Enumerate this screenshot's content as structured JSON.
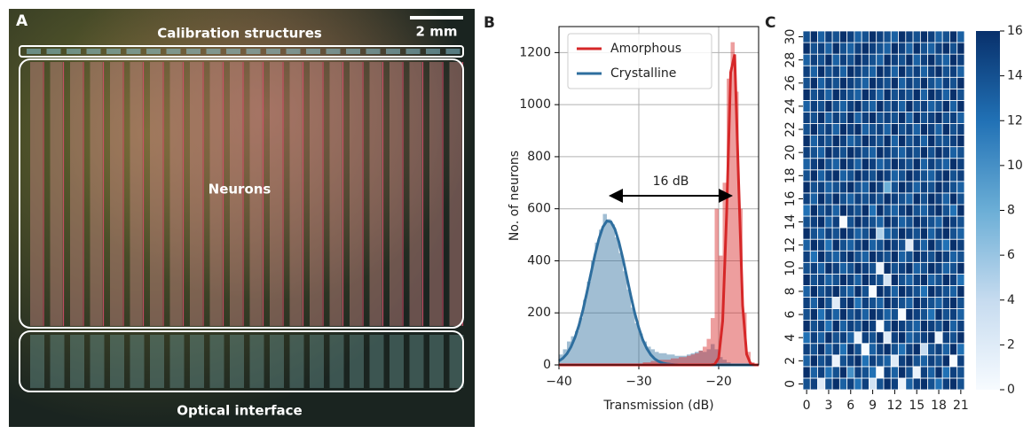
{
  "photo": {
    "panel": "A",
    "top_label": "Calibration structures",
    "scale_bar": "2 mm",
    "center_label": "Neurons",
    "bottom_label": "Optical interface"
  },
  "chart_data": [
    {
      "type": "histogram",
      "panel": "B",
      "xlabel": "Transmission (dB)",
      "ylabel": "No. of neurons",
      "xlim": [
        -40,
        -15
      ],
      "ylim": [
        0,
        1300
      ],
      "xticks": [
        {
          "value": -40,
          "label": "−40"
        },
        {
          "value": -30,
          "label": "−30"
        },
        {
          "value": -20,
          "label": "−20"
        }
      ],
      "yticks": [
        0,
        200,
        400,
        600,
        800,
        1000,
        1200
      ],
      "grid": true,
      "legend": "upper left",
      "bins": [
        -40,
        -39.5,
        -39,
        -38.5,
        -38,
        -37.5,
        -37,
        -36.5,
        -36,
        -35.5,
        -35,
        -34.5,
        -34,
        -33.5,
        -33,
        -32.5,
        -32,
        -31.5,
        -31,
        -30.5,
        -30,
        -29.5,
        -29,
        -28.5,
        -28,
        -27.5,
        -27,
        -26.5,
        -26,
        -25.5,
        -25,
        -24.5,
        -24,
        -23.5,
        -23,
        -22.5,
        -22,
        -21.5,
        -21,
        -20.5,
        -20,
        -19.5,
        -19,
        -18.5,
        -18,
        -17.5,
        -17,
        -16.5,
        -16,
        -15.5,
        -15
      ],
      "series": [
        {
          "name": "Amorphous",
          "color": "#d62728",
          "values": [
            0,
            0,
            0,
            0,
            0,
            0,
            0,
            0,
            0,
            0,
            0,
            0,
            0,
            0,
            0,
            0,
            0,
            0,
            0,
            0,
            5,
            10,
            10,
            15,
            15,
            20,
            20,
            20,
            25,
            25,
            30,
            30,
            35,
            40,
            45,
            55,
            70,
            100,
            180,
            600,
            420,
            700,
            1100,
            1240,
            1050,
            600,
            200,
            50,
            10,
            0
          ],
          "fit": [
            0,
            0,
            0,
            0,
            0,
            0,
            0,
            0,
            0,
            0,
            0,
            0,
            0,
            0,
            0,
            0,
            0,
            0,
            0,
            0,
            0,
            0,
            0,
            0,
            0,
            0,
            0,
            0,
            0,
            0,
            0,
            0,
            0,
            0,
            0,
            0,
            0,
            0,
            0,
            2,
            27,
            169,
            586,
            1124,
            1193,
            700,
            228,
            41,
            4,
            0,
            0
          ]
        },
        {
          "name": "Crystalline",
          "color": "#2e6e9e",
          "values": [
            40,
            60,
            90,
            110,
            130,
            180,
            250,
            320,
            400,
            470,
            520,
            580,
            560,
            540,
            490,
            430,
            360,
            290,
            220,
            160,
            120,
            90,
            70,
            60,
            50,
            45,
            45,
            40,
            40,
            35,
            35,
            35,
            40,
            45,
            50,
            55,
            50,
            60,
            80,
            60,
            30,
            20,
            10,
            5,
            0,
            0,
            0,
            0,
            0,
            0
          ],
          "fit": [
            15,
            26,
            43,
            69,
            105,
            152,
            211,
            279,
            351,
            422,
            484,
            530,
            553,
            550,
            522,
            473,
            409,
            337,
            265,
            198,
            142,
            96,
            63,
            39,
            23,
            13,
            7,
            4,
            2,
            1,
            0,
            0,
            0,
            0,
            0,
            0,
            0,
            0,
            0,
            0,
            0,
            0,
            0,
            0,
            0,
            0,
            0,
            0,
            0,
            0,
            0
          ]
        }
      ],
      "annotation": {
        "text": "16 dB",
        "x_from": -33.6,
        "x_to": -18.4,
        "y": 650
      }
    },
    {
      "type": "heatmap",
      "panel": "C",
      "colormap": "Blues",
      "xlim": [
        -0.5,
        21.5
      ],
      "ylim": [
        -0.5,
        30.5
      ],
      "xticks": [
        0,
        3,
        6,
        9,
        12,
        15,
        18,
        21
      ],
      "yticks": [
        0,
        2,
        4,
        6,
        8,
        10,
        12,
        14,
        16,
        18,
        20,
        22,
        24,
        26,
        28,
        30
      ],
      "clim": [
        0,
        16
      ],
      "cticks": [
        0,
        2,
        4,
        6,
        8,
        10,
        12,
        14,
        16
      ],
      "values": [
        [
          14,
          15,
          2,
          14,
          16,
          13,
          15,
          12,
          15,
          3,
          14,
          16,
          15,
          1,
          13,
          15,
          16,
          14,
          12,
          15,
          16,
          14
        ],
        [
          16,
          13,
          15,
          12,
          14,
          16,
          10,
          15,
          14,
          12,
          0,
          15,
          13,
          16,
          14,
          1,
          15,
          13,
          16,
          12,
          15,
          14
        ],
        [
          13,
          16,
          14,
          15,
          1,
          14,
          15,
          16,
          12,
          15,
          14,
          13,
          2,
          15,
          16,
          14,
          13,
          15,
          14,
          16,
          0,
          15
        ],
        [
          15,
          14,
          16,
          13,
          15,
          12,
          16,
          14,
          0,
          13,
          15,
          16,
          14,
          12,
          15,
          16,
          4,
          14,
          15,
          13,
          16,
          12
        ],
        [
          12,
          15,
          13,
          16,
          14,
          15,
          13,
          1,
          15,
          14,
          16,
          2,
          15,
          16,
          13,
          14,
          15,
          16,
          1,
          15,
          14,
          16
        ],
        [
          16,
          14,
          15,
          12,
          16,
          13,
          15,
          14,
          16,
          15,
          0,
          14,
          16,
          15,
          14,
          13,
          16,
          15,
          14,
          16,
          13,
          15
        ],
        [
          14,
          16,
          12,
          15,
          13,
          16,
          14,
          15,
          13,
          16,
          15,
          13,
          14,
          0,
          16,
          15,
          14,
          12,
          16,
          14,
          15,
          13
        ],
        [
          15,
          13,
          16,
          14,
          2,
          15,
          16,
          12,
          15,
          14,
          13,
          16,
          15,
          14,
          13,
          16,
          15,
          14,
          13,
          15,
          16,
          14
        ],
        [
          13,
          16,
          14,
          15,
          16,
          14,
          13,
          16,
          14,
          0,
          16,
          15,
          13,
          16,
          15,
          14,
          12,
          16,
          15,
          14,
          13,
          16
        ],
        [
          16,
          14,
          15,
          13,
          14,
          16,
          15,
          13,
          16,
          15,
          14,
          3,
          16,
          14,
          13,
          15,
          16,
          13,
          14,
          16,
          15,
          12
        ],
        [
          14,
          15,
          13,
          16,
          15,
          13,
          14,
          16,
          15,
          14,
          1,
          16,
          14,
          15,
          16,
          13,
          14,
          16,
          15,
          13,
          14,
          16
        ],
        [
          15,
          12,
          16,
          14,
          13,
          15,
          16,
          14,
          13,
          16,
          15,
          14,
          16,
          13,
          14,
          16,
          15,
          14,
          16,
          15,
          13,
          14
        ],
        [
          13,
          16,
          15,
          12,
          16,
          14,
          13,
          15,
          16,
          13,
          14,
          16,
          15,
          14,
          2,
          15,
          13,
          16,
          14,
          12,
          16,
          15
        ],
        [
          16,
          14,
          13,
          15,
          14,
          16,
          15,
          13,
          14,
          16,
          5,
          13,
          14,
          16,
          15,
          14,
          16,
          13,
          15,
          16,
          14,
          13
        ],
        [
          14,
          15,
          16,
          13,
          15,
          0,
          14,
          16,
          15,
          14,
          13,
          16,
          15,
          13,
          14,
          16,
          15,
          14,
          13,
          16,
          15,
          14
        ],
        [
          12,
          16,
          14,
          15,
          13,
          16,
          15,
          14,
          16,
          12,
          16,
          14,
          13,
          15,
          16,
          14,
          13,
          15,
          16,
          14,
          12,
          16
        ],
        [
          15,
          13,
          16,
          14,
          16,
          14,
          13,
          15,
          14,
          15,
          14,
          16,
          15,
          14,
          13,
          16,
          14,
          16,
          15,
          13,
          16,
          14
        ],
        [
          16,
          14,
          15,
          13,
          14,
          15,
          16,
          14,
          13,
          16,
          15,
          8,
          14,
          16,
          15,
          13,
          15,
          14,
          16,
          15,
          14,
          13
        ],
        [
          14,
          16,
          13,
          15,
          16,
          13,
          14,
          16,
          15,
          14,
          16,
          15,
          13,
          14,
          16,
          15,
          14,
          13,
          15,
          16,
          14,
          15
        ],
        [
          13,
          15,
          16,
          14,
          13,
          16,
          15,
          13,
          16,
          15,
          13,
          14,
          16,
          15,
          14,
          16,
          13,
          15,
          14,
          13,
          16,
          15
        ],
        [
          15,
          14,
          13,
          16,
          15,
          14,
          16,
          15,
          14,
          13,
          16,
          15,
          14,
          13,
          15,
          14,
          16,
          14,
          16,
          15,
          13,
          14
        ],
        [
          16,
          13,
          15,
          14,
          16,
          15,
          13,
          14,
          16,
          15,
          14,
          16,
          13,
          16,
          14,
          15,
          13,
          16,
          14,
          14,
          15,
          16
        ],
        [
          14,
          16,
          14,
          15,
          13,
          16,
          15,
          16,
          13,
          14,
          15,
          13,
          16,
          14,
          15,
          13,
          16,
          15,
          13,
          16,
          14,
          15
        ],
        [
          15,
          14,
          16,
          13,
          15,
          14,
          16,
          13,
          15,
          16,
          14,
          15,
          14,
          16,
          13,
          16,
          14,
          15,
          16,
          14,
          15,
          13
        ],
        [
          13,
          15,
          14,
          16,
          14,
          13,
          15,
          16,
          14,
          13,
          16,
          14,
          15,
          13,
          16,
          14,
          15,
          13,
          14,
          16,
          13,
          16
        ],
        [
          16,
          14,
          15,
          13,
          16,
          15,
          14,
          13,
          16,
          15,
          13,
          16,
          14,
          15,
          14,
          16,
          13,
          16,
          15,
          13,
          16,
          14
        ],
        [
          14,
          16,
          13,
          15,
          14,
          16,
          15,
          14,
          13,
          16,
          15,
          14,
          16,
          13,
          15,
          14,
          16,
          14,
          13,
          15,
          14,
          16
        ],
        [
          15,
          13,
          16,
          14,
          15,
          13,
          16,
          15,
          14,
          13,
          16,
          15,
          13,
          16,
          14,
          15,
          13,
          15,
          16,
          14,
          15,
          13
        ],
        [
          13,
          15,
          14,
          16,
          13,
          15,
          14,
          16,
          15,
          14,
          13,
          16,
          15,
          14,
          16,
          13,
          15,
          16,
          14,
          13,
          16,
          15
        ],
        [
          16,
          14,
          15,
          13,
          16,
          14,
          13,
          15,
          16,
          15,
          14,
          13,
          16,
          15,
          13,
          16,
          14,
          13,
          15,
          16,
          14,
          16
        ],
        [
          14,
          16,
          13,
          15,
          14,
          16,
          15,
          13,
          14,
          16,
          15,
          14,
          13,
          16,
          15,
          14,
          16,
          15,
          13,
          14,
          16,
          13
        ]
      ]
    }
  ]
}
